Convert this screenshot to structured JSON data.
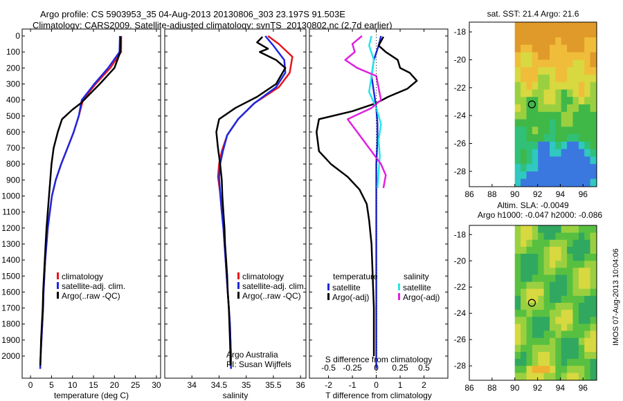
{
  "header": {
    "line1": "Argo profile: CS 5903953_35 04-Aug-2013 20130806_303 23.197S 91.503E",
    "line2": "Climatology: CARS2009. Satellite-adjusted climatology: synTS_20130802.nc (2.7d earlier)"
  },
  "side_label": "IMOS 07-Aug-2013 10:04:06",
  "colors": {
    "red": "#e8141c",
    "blue": "#1e28e0",
    "black": "#000000",
    "cyan": "#22e8e8",
    "magenta": "#e020e0"
  },
  "chart_data": [
    {
      "type": "line",
      "xlabel": "temperature (deg C)",
      "ylabel": "",
      "xlim": [
        -2,
        31
      ],
      "ylim": [
        2090,
        0
      ],
      "xticks": [
        0,
        5,
        10,
        15,
        20,
        25,
        30
      ],
      "yticks": [
        0,
        100,
        200,
        300,
        400,
        500,
        600,
        700,
        800,
        900,
        1000,
        1100,
        1200,
        1300,
        1400,
        1500,
        1600,
        1700,
        1800,
        1900,
        2000
      ],
      "legend": [
        "climatology",
        "satellite-adj. clim.",
        "Argo(..raw -QC)"
      ],
      "series": [
        {
          "name": "climatology",
          "color": "red",
          "points": [
            [
              21.6,
              0
            ],
            [
              21.6,
              100
            ],
            [
              19,
              200
            ],
            [
              15.5,
              300
            ],
            [
              12.5,
              400
            ],
            [
              11.5,
              500
            ],
            [
              10.3,
              600
            ],
            [
              8.8,
              700
            ],
            [
              7.3,
              800
            ],
            [
              6,
              900
            ],
            [
              5.1,
              1000
            ],
            [
              4.6,
              1100
            ],
            [
              4.1,
              1200
            ],
            [
              3.8,
              1300
            ],
            [
              3.5,
              1400
            ],
            [
              3.3,
              1500
            ],
            [
              3.1,
              1600
            ],
            [
              3,
              1700
            ],
            [
              2.8,
              1800
            ],
            [
              2.6,
              1900
            ],
            [
              2.4,
              2000
            ],
            [
              2.3,
              2080
            ]
          ]
        },
        {
          "name": "satellite-adj. clim.",
          "color": "blue",
          "points": [
            [
              21.3,
              0
            ],
            [
              21.2,
              100
            ],
            [
              18.5,
              200
            ],
            [
              15.2,
              300
            ],
            [
              12.2,
              400
            ],
            [
              11.5,
              500
            ],
            [
              10.3,
              600
            ],
            [
              8.8,
              700
            ],
            [
              7.3,
              800
            ],
            [
              6,
              900
            ],
            [
              5.1,
              1000
            ],
            [
              4.6,
              1100
            ],
            [
              4.1,
              1200
            ],
            [
              3.8,
              1300
            ],
            [
              3.5,
              1400
            ],
            [
              3.3,
              1500
            ],
            [
              3.1,
              1600
            ],
            [
              3,
              1700
            ],
            [
              2.8,
              1800
            ],
            [
              2.6,
              1900
            ],
            [
              2.4,
              2000
            ],
            [
              2.3,
              2080
            ]
          ]
        },
        {
          "name": "Argo(..raw -QC)",
          "color": "black",
          "points": [
            [
              21.5,
              5
            ],
            [
              21.4,
              100
            ],
            [
              20,
              200
            ],
            [
              16.5,
              300
            ],
            [
              12,
              420
            ],
            [
              10,
              460
            ],
            [
              7.5,
              520
            ],
            [
              6.5,
              600
            ],
            [
              5.5,
              700
            ],
            [
              5,
              800
            ],
            [
              4.7,
              900
            ],
            [
              4.4,
              1000
            ],
            [
              4.1,
              1100
            ],
            [
              3.8,
              1200
            ],
            [
              3.6,
              1300
            ],
            [
              3.4,
              1400
            ],
            [
              3.2,
              1500
            ],
            [
              3,
              1600
            ],
            [
              2.9,
              1700
            ],
            [
              2.7,
              1800
            ],
            [
              2.5,
              1900
            ],
            [
              2.4,
              2000
            ],
            [
              2.3,
              2060
            ]
          ]
        }
      ]
    },
    {
      "type": "line",
      "xlabel": "salinity",
      "xlim": [
        33.5,
        36.1
      ],
      "ylim": [
        2090,
        0
      ],
      "xticks": [
        34,
        34.5,
        35,
        35.5,
        36
      ],
      "legend": [
        "climatology",
        "satellite-adj. clim.",
        "Argo(..raw -QC)"
      ],
      "annotation": [
        "Argo Australia",
        "PI: Susan Wijffels"
      ],
      "series": [
        {
          "name": "climatology",
          "color": "red",
          "points": [
            [
              35.4,
              0
            ],
            [
              35.6,
              50
            ],
            [
              35.85,
              130
            ],
            [
              35.8,
              230
            ],
            [
              35.6,
              320
            ],
            [
              35.15,
              420
            ],
            [
              34.85,
              520
            ],
            [
              34.65,
              620
            ],
            [
              34.55,
              720
            ],
            [
              34.5,
              800
            ],
            [
              34.48,
              880
            ],
            [
              34.52,
              980
            ],
            [
              34.55,
              1100
            ],
            [
              34.58,
              1200
            ],
            [
              34.6,
              1300
            ],
            [
              34.62,
              1400
            ],
            [
              34.64,
              1500
            ],
            [
              34.66,
              1600
            ],
            [
              34.68,
              1700
            ],
            [
              34.7,
              1800
            ],
            [
              34.71,
              1900
            ],
            [
              34.72,
              2000
            ],
            [
              34.72,
              2080
            ]
          ]
        },
        {
          "name": "satellite-adj. clim.",
          "color": "blue",
          "points": [
            [
              35.35,
              0
            ],
            [
              35.5,
              60
            ],
            [
              35.7,
              150
            ],
            [
              35.72,
              230
            ],
            [
              35.55,
              320
            ],
            [
              35.15,
              420
            ],
            [
              34.85,
              520
            ],
            [
              34.65,
              620
            ],
            [
              34.57,
              720
            ],
            [
              34.52,
              800
            ],
            [
              34.5,
              880
            ],
            [
              34.52,
              980
            ],
            [
              34.55,
              1100
            ],
            [
              34.58,
              1200
            ],
            [
              34.6,
              1300
            ],
            [
              34.62,
              1400
            ],
            [
              34.64,
              1500
            ],
            [
              34.66,
              1600
            ],
            [
              34.68,
              1700
            ],
            [
              34.7,
              1800
            ],
            [
              34.71,
              1900
            ],
            [
              34.72,
              2000
            ],
            [
              34.72,
              2080
            ]
          ]
        },
        {
          "name": "Argo(..raw -QC)",
          "color": "black",
          "points": [
            [
              35.3,
              5
            ],
            [
              35.2,
              40
            ],
            [
              35.4,
              80
            ],
            [
              35.25,
              100
            ],
            [
              35.55,
              150
            ],
            [
              35.72,
              200
            ],
            [
              35.55,
              300
            ],
            [
              35.2,
              380
            ],
            [
              34.8,
              450
            ],
            [
              34.5,
              520
            ],
            [
              34.45,
              600
            ],
            [
              34.48,
              700
            ],
            [
              34.52,
              800
            ],
            [
              34.55,
              900
            ],
            [
              34.56,
              1000
            ],
            [
              34.58,
              1100
            ],
            [
              34.6,
              1200
            ],
            [
              34.61,
              1300
            ],
            [
              34.63,
              1400
            ],
            [
              34.65,
              1500
            ],
            [
              34.66,
              1600
            ],
            [
              34.68,
              1700
            ],
            [
              34.69,
              1800
            ],
            [
              34.7,
              1900
            ],
            [
              34.71,
              2000
            ],
            [
              34.71,
              2060
            ]
          ]
        }
      ]
    },
    {
      "type": "line",
      "xlabel": "T difference from climatology",
      "x2label": "S difference from climatology",
      "xlim": [
        -2.8,
        3
      ],
      "ylim": [
        2090,
        0
      ],
      "xticks": [
        -2,
        -1,
        0,
        1,
        2
      ],
      "x2ticks_labels": [
        "-0.5",
        "-0.25",
        "0",
        "0.25",
        "0.5"
      ],
      "x2ticks_at": [
        -2,
        -1,
        0,
        1,
        2
      ],
      "legend_groups": [
        "temperature",
        "salinity"
      ],
      "legend": [
        "satellite",
        "Argo(-adj)",
        "satellite",
        "Argo(-adj)"
      ],
      "series": [
        {
          "name": "temperature satellite",
          "color": "blue",
          "points": [
            [
              0.2,
              0
            ],
            [
              0.1,
              60
            ],
            [
              -0.1,
              150
            ],
            [
              -0.2,
              250
            ],
            [
              -0.1,
              350
            ],
            [
              0,
              450
            ],
            [
              0.05,
              550
            ],
            [
              0.05,
              650
            ],
            [
              0,
              800
            ],
            [
              0,
              1000
            ],
            [
              0,
              1500
            ],
            [
              0,
              2080
            ]
          ]
        },
        {
          "name": "temperature Argo(-adj)",
          "color": "black",
          "points": [
            [
              0.3,
              5
            ],
            [
              0.1,
              60
            ],
            [
              0.4,
              100
            ],
            [
              0.9,
              150
            ],
            [
              1,
              200
            ],
            [
              1.4,
              230
            ],
            [
              1.7,
              280
            ],
            [
              1.3,
              330
            ],
            [
              0.5,
              380
            ],
            [
              0,
              420
            ],
            [
              -1,
              470
            ],
            [
              -2.4,
              520
            ],
            [
              -2.5,
              600
            ],
            [
              -2.4,
              720
            ],
            [
              -1.9,
              800
            ],
            [
              -1.2,
              880
            ],
            [
              -0.7,
              960
            ],
            [
              -0.4,
              1050
            ],
            [
              -0.3,
              1150
            ],
            [
              -0.2,
              1300
            ],
            [
              -0.15,
              1500
            ],
            [
              -0.1,
              1700
            ],
            [
              -0.1,
              1900
            ],
            [
              -0.1,
              2000
            ]
          ]
        },
        {
          "name": "salinity satellite",
          "color": "cyan",
          "points": [
            [
              -0.2,
              0
            ],
            [
              -0.3,
              60
            ],
            [
              -0.1,
              150
            ],
            [
              -0.2,
              250
            ],
            [
              -0.3,
              350
            ],
            [
              0,
              450
            ],
            [
              0.2,
              550
            ],
            [
              0.1,
              650
            ],
            [
              0.15,
              750
            ],
            [
              0.1,
              850
            ],
            [
              0.05,
              950
            ]
          ]
        },
        {
          "name": "salinity Argo(-adj)",
          "color": "magenta",
          "points": [
            [
              -0.6,
              0
            ],
            [
              -1,
              50
            ],
            [
              -0.9,
              100
            ],
            [
              -1.3,
              150
            ],
            [
              -0.8,
              200
            ],
            [
              0,
              250
            ],
            [
              0.2,
              400
            ],
            [
              -0.2,
              450
            ],
            [
              -1.2,
              520
            ],
            [
              -0.8,
              600
            ],
            [
              -0.3,
              700
            ],
            [
              0.2,
              800
            ],
            [
              0.4,
              870
            ],
            [
              0.3,
              950
            ]
          ]
        }
      ]
    },
    {
      "type": "heatmap",
      "title": "sat. SST: 21.4 Argo: 21.6",
      "xlim": [
        86,
        97.2
      ],
      "ylim": [
        -29.1,
        -17.3
      ],
      "xticks": [
        86,
        88,
        90,
        92,
        94,
        96
      ],
      "yticks": [
        -18,
        -20,
        -22,
        -24,
        -26,
        -28
      ],
      "argo_position": [
        91.5,
        -23.2
      ]
    },
    {
      "type": "heatmap",
      "title_lines": [
        "Altim. SLA: -0.0049",
        "Argo h1000: -0.047 h2000: -0.086"
      ],
      "xlim": [
        86,
        97.2
      ],
      "ylim": [
        -29.1,
        -17.3
      ],
      "xticks": [
        86,
        88,
        90,
        92,
        94,
        96
      ],
      "yticks": [
        -18,
        -20,
        -22,
        -24,
        -26,
        -28
      ],
      "argo_position": [
        91.5,
        -23.2
      ]
    }
  ]
}
